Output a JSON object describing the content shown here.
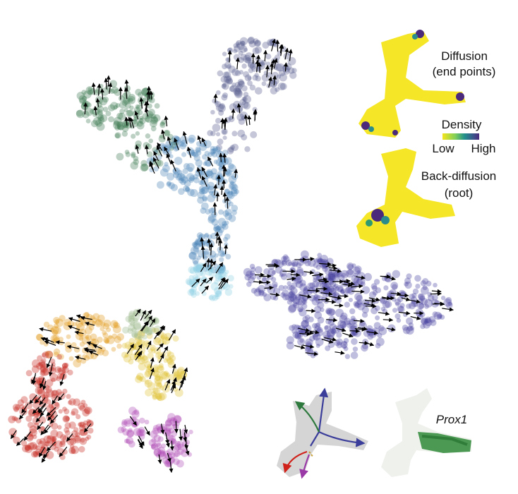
{
  "labels": {
    "diffusion_title": "Diffusion",
    "diffusion_sub": "(end points)",
    "density": "Density",
    "low": "Low",
    "high": "High",
    "back_title": "Back-diffusion",
    "back_sub": "(root)",
    "gene": "Prox1"
  },
  "colors": {
    "dark_green": "#3f7a52",
    "steel_blue": "#4a85b8",
    "slate_navy": "#5a5f90",
    "light_cyan": "#8fd0e6",
    "indigo": "#4a46a0",
    "orange": "#e39a1e",
    "red": "#c7271f",
    "gold": "#e0c23a",
    "sage": "#9fb98c",
    "magenta": "#b04ab4",
    "density_low": "#f4e51b",
    "density_high": "#4b2a7c",
    "prox1_green": "#2f8a3a"
  }
}
